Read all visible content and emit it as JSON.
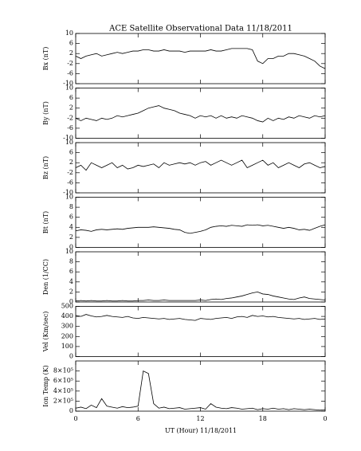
{
  "chart_data": [
    {
      "type": "line",
      "title": "ACE Satellite Observational Data   11/18/2011",
      "ylabel": "Bx (nT)",
      "color": "#000000",
      "x": [
        0,
        0.5,
        1,
        1.5,
        2,
        2.5,
        3,
        3.5,
        4,
        4.5,
        5,
        5.5,
        6,
        6.5,
        7,
        7.5,
        8,
        8.5,
        9,
        9.5,
        10,
        10.5,
        11,
        11.5,
        12,
        12.5,
        13,
        13.5,
        14,
        14.5,
        15,
        15.5,
        16,
        16.5,
        17,
        17.5,
        18,
        18.5,
        19,
        19.5,
        20,
        20.5,
        21,
        21.5,
        22,
        22.5,
        23,
        23.5,
        24
      ],
      "values": [
        1,
        0,
        1,
        1.5,
        2,
        1,
        1.5,
        2,
        2.5,
        2,
        2.5,
        3,
        3,
        3.5,
        3.5,
        3,
        3,
        3.5,
        3,
        3,
        3,
        2.5,
        3,
        3,
        3,
        3,
        3.5,
        3,
        3,
        3.5,
        4,
        4,
        4,
        4,
        3.5,
        -1,
        -2,
        0,
        0,
        1,
        1,
        2,
        2,
        1.5,
        1,
        0,
        -1,
        -3,
        -4
      ],
      "ylim": [
        -10,
        10
      ],
      "yticks": [
        -10,
        -6,
        -2,
        2,
        6,
        10
      ]
    },
    {
      "type": "line",
      "ylabel": "By (nT)",
      "color": "#000000",
      "x": [
        0,
        0.5,
        1,
        1.5,
        2,
        2.5,
        3,
        3.5,
        4,
        4.5,
        5,
        5.5,
        6,
        6.5,
        7,
        7.5,
        8,
        8.5,
        9,
        9.5,
        10,
        10.5,
        11,
        11.5,
        12,
        12.5,
        13,
        13.5,
        14,
        14.5,
        15,
        15.5,
        16,
        16.5,
        17,
        17.5,
        18,
        18.5,
        19,
        19.5,
        20,
        20.5,
        21,
        21.5,
        22,
        22.5,
        23,
        23.5,
        24
      ],
      "values": [
        -2,
        -3,
        -2,
        -2.5,
        -3,
        -2,
        -2.5,
        -2,
        -1,
        -1.5,
        -1,
        -0.5,
        0,
        1,
        2,
        2.5,
        3,
        2,
        1.5,
        1,
        0,
        -0.5,
        -1,
        -2,
        -1,
        -1.5,
        -1,
        -2,
        -1,
        -2,
        -1.5,
        -2,
        -1,
        -1.5,
        -2,
        -3,
        -3.5,
        -2,
        -3,
        -2,
        -2.5,
        -1.5,
        -2,
        -1,
        -1.5,
        -2,
        -1,
        -1.5,
        -1
      ],
      "ylim": [
        -10,
        10
      ],
      "yticks": [
        -10,
        -6,
        -2,
        2,
        6,
        10
      ]
    },
    {
      "type": "line",
      "ylabel": "Bz (nT)",
      "color": "#000000",
      "x": [
        0,
        0.5,
        1,
        1.5,
        2,
        2.5,
        3,
        3.5,
        4,
        4.5,
        5,
        5.5,
        6,
        6.5,
        7,
        7.5,
        8,
        8.5,
        9,
        9.5,
        10,
        10.5,
        11,
        11.5,
        12,
        12.5,
        13,
        13.5,
        14,
        14.5,
        15,
        15.5,
        16,
        16.5,
        17,
        17.5,
        18,
        18.5,
        19,
        19.5,
        20,
        20.5,
        21,
        21.5,
        22,
        22.5,
        23,
        23.5,
        24
      ],
      "values": [
        0,
        1,
        -1,
        2,
        1,
        0,
        1,
        2,
        0,
        1,
        -0.5,
        0,
        1,
        0.5,
        1,
        1.5,
        0,
        2,
        1,
        1.5,
        2,
        1.5,
        2,
        1,
        2,
        2.5,
        1,
        2,
        3,
        2,
        1,
        2,
        3,
        0,
        1,
        2,
        3,
        1,
        2,
        0,
        1,
        2,
        1,
        0,
        1.5,
        2,
        1,
        0,
        0.5
      ],
      "ylim": [
        -10,
        10
      ],
      "yticks": [
        -10,
        -6,
        -2,
        2,
        6,
        10
      ]
    },
    {
      "type": "line",
      "ylabel": "Bt (nT)",
      "color": "#000000",
      "x": [
        0,
        0.5,
        1,
        1.5,
        2,
        2.5,
        3,
        3.5,
        4,
        4.5,
        5,
        5.5,
        6,
        6.5,
        7,
        7.5,
        8,
        8.5,
        9,
        9.5,
        10,
        10.5,
        11,
        11.5,
        12,
        12.5,
        13,
        13.5,
        14,
        14.5,
        15,
        15.5,
        16,
        16.5,
        17,
        17.5,
        18,
        18.5,
        19,
        19.5,
        20,
        20.5,
        21,
        21.5,
        22,
        22.5,
        23,
        23.5,
        24
      ],
      "values": [
        3.3,
        3.5,
        3.4,
        3.2,
        3.5,
        3.6,
        3.5,
        3.6,
        3.7,
        3.6,
        3.8,
        3.9,
        4,
        4,
        4,
        4.1,
        4,
        3.9,
        3.8,
        3.6,
        3.5,
        3,
        2.8,
        3,
        3.2,
        3.5,
        4,
        4.2,
        4.3,
        4.2,
        4.4,
        4.3,
        4.2,
        4.5,
        4.4,
        4.5,
        4.3,
        4.4,
        4.2,
        4,
        3.8,
        4,
        3.8,
        3.5,
        3.6,
        3.4,
        3.8,
        4.2,
        4.5
      ],
      "ylim": [
        0,
        10
      ],
      "yticks": [
        0,
        2,
        4,
        6,
        8,
        10
      ]
    },
    {
      "type": "line",
      "ylabel": "Den (1/CC)",
      "color": "#000000",
      "x": [
        0,
        0.5,
        1,
        1.5,
        2,
        2.5,
        3,
        3.5,
        4,
        4.5,
        5,
        5.5,
        6,
        6.5,
        7,
        7.5,
        8,
        8.5,
        9,
        9.5,
        10,
        10.5,
        11,
        11.5,
        12,
        12.5,
        13,
        13.5,
        14,
        14.5,
        15,
        15.5,
        16,
        16.5,
        17,
        17.5,
        18,
        18.5,
        19,
        19.5,
        20,
        20.5,
        21,
        21.5,
        22,
        22.5,
        23,
        23.5,
        24
      ],
      "values": [
        0.2,
        0.3,
        0.2,
        0.3,
        0.2,
        0.2,
        0.3,
        0.2,
        0.2,
        0.3,
        0.2,
        0.2,
        0.3,
        0.3,
        0.4,
        0.3,
        0.3,
        0.4,
        0.3,
        0.3,
        0.3,
        0.3,
        0.3,
        0.3,
        0.4,
        0.3,
        0.5,
        0.6,
        0.5,
        0.7,
        0.8,
        1,
        1.2,
        1.5,
        1.8,
        2,
        1.6,
        1.5,
        1.2,
        1,
        0.8,
        0.6,
        0.5,
        0.8,
        1,
        0.7,
        0.6,
        0.5,
        0.4
      ],
      "ylim": [
        0,
        10
      ],
      "yticks": [
        0,
        2,
        4,
        6,
        8,
        10
      ]
    },
    {
      "type": "line",
      "ylabel": "Vel (Km/sec)",
      "color": "#000000",
      "x": [
        0,
        0.5,
        1,
        1.5,
        2,
        2.5,
        3,
        3.5,
        4,
        4.5,
        5,
        5.5,
        6,
        6.5,
        7,
        7.5,
        8,
        8.5,
        9,
        9.5,
        10,
        10.5,
        11,
        11.5,
        12,
        12.5,
        13,
        13.5,
        14,
        14.5,
        15,
        15.5,
        16,
        16.5,
        17,
        17.5,
        18,
        18.5,
        19,
        19.5,
        20,
        20.5,
        21,
        21.5,
        22,
        22.5,
        23,
        23.5,
        24
      ],
      "values": [
        410,
        400,
        420,
        405,
        395,
        400,
        410,
        400,
        395,
        390,
        400,
        385,
        380,
        390,
        385,
        380,
        375,
        380,
        370,
        375,
        380,
        370,
        365,
        360,
        380,
        375,
        370,
        380,
        385,
        390,
        380,
        395,
        400,
        390,
        410,
        400,
        405,
        395,
        400,
        390,
        385,
        380,
        375,
        380,
        370,
        375,
        380,
        370,
        375
      ],
      "ylim": [
        0,
        500
      ],
      "yticks": [
        0,
        100,
        200,
        300,
        400,
        500
      ]
    },
    {
      "type": "line",
      "ylabel": "Ion Temp (K)",
      "xlabel": "UT (Hour)  11/18/2011",
      "color": "#000000",
      "x": [
        0,
        0.5,
        1,
        1.5,
        2,
        2.5,
        3,
        3.5,
        4,
        4.5,
        5,
        5.5,
        6,
        6.5,
        7,
        7.5,
        8,
        8.5,
        9,
        9.5,
        10,
        10.5,
        11,
        11.5,
        12,
        12.5,
        13,
        13.5,
        14,
        14.5,
        15,
        15.5,
        16,
        16.5,
        17,
        17.5,
        18,
        18.5,
        19,
        19.5,
        20,
        20.5,
        21,
        21.5,
        22,
        22.5,
        23,
        23.5,
        24
      ],
      "values": [
        60000,
        80000,
        50000,
        120000,
        70000,
        250000,
        100000,
        80000,
        60000,
        90000,
        70000,
        80000,
        100000,
        800000,
        750000,
        150000,
        60000,
        80000,
        50000,
        60000,
        70000,
        40000,
        50000,
        60000,
        70000,
        40000,
        150000,
        80000,
        60000,
        50000,
        70000,
        60000,
        40000,
        50000,
        60000,
        30000,
        50000,
        40000,
        60000,
        40000,
        50000,
        30000,
        50000,
        40000,
        30000,
        40000,
        30000,
        20000,
        30000
      ],
      "ylim": [
        0,
        1000000
      ],
      "yticks": [
        0,
        {
          "value": 200000,
          "label": "2×10⁵"
        },
        {
          "value": 400000,
          "label": "4×10⁵"
        },
        {
          "value": 600000,
          "label": "6×10⁵"
        },
        {
          "value": 800000,
          "label": "8×10⁵"
        }
      ],
      "xlim": [
        0,
        24
      ],
      "xticks": [
        0,
        6,
        12,
        18,
        {
          "value": 24,
          "label": "0"
        }
      ]
    }
  ]
}
